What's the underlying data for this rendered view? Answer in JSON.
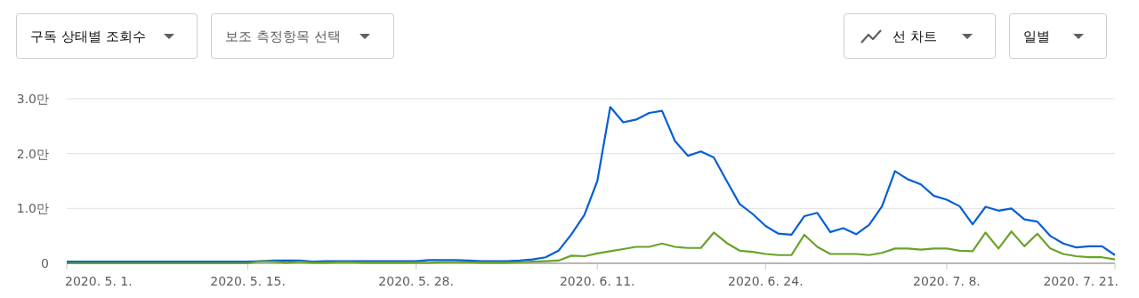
{
  "chart_data": {
    "type": "line",
    "annotations": [
      "구독 상태별 조회수",
      "보조 측정항목 선택",
      "선 차트",
      "일별"
    ],
    "x": [
      "2020-05-01",
      "2020-05-02",
      "2020-05-03",
      "2020-05-04",
      "2020-05-05",
      "2020-05-06",
      "2020-05-07",
      "2020-05-08",
      "2020-05-09",
      "2020-05-10",
      "2020-05-11",
      "2020-05-12",
      "2020-05-13",
      "2020-05-14",
      "2020-05-15",
      "2020-05-16",
      "2020-05-17",
      "2020-05-18",
      "2020-05-19",
      "2020-05-20",
      "2020-05-21",
      "2020-05-22",
      "2020-05-23",
      "2020-05-24",
      "2020-05-25",
      "2020-05-26",
      "2020-05-27",
      "2020-05-28",
      "2020-05-29",
      "2020-05-30",
      "2020-05-31",
      "2020-06-01",
      "2020-06-02",
      "2020-06-03",
      "2020-06-04",
      "2020-06-05",
      "2020-06-06",
      "2020-06-07",
      "2020-06-08",
      "2020-06-09",
      "2020-06-10",
      "2020-06-11",
      "2020-06-12",
      "2020-06-13",
      "2020-06-14",
      "2020-06-15",
      "2020-06-16",
      "2020-06-17",
      "2020-06-18",
      "2020-06-19",
      "2020-06-20",
      "2020-06-21",
      "2020-06-22",
      "2020-06-23",
      "2020-06-24",
      "2020-06-25",
      "2020-06-26",
      "2020-06-27",
      "2020-06-28",
      "2020-06-29",
      "2020-06-30",
      "2020-07-01",
      "2020-07-02",
      "2020-07-03",
      "2020-07-04",
      "2020-07-05",
      "2020-07-06",
      "2020-07-07",
      "2020-07-08",
      "2020-07-09",
      "2020-07-10",
      "2020-07-11",
      "2020-07-12",
      "2020-07-13",
      "2020-07-14",
      "2020-07-15",
      "2020-07-16",
      "2020-07-17",
      "2020-07-18",
      "2020-07-19",
      "2020-07-20",
      "2020-07-21"
    ],
    "series": [
      {
        "color": "#065fd4",
        "values": [
          0.03,
          0.03,
          0.03,
          0.03,
          0.03,
          0.03,
          0.03,
          0.03,
          0.03,
          0.03,
          0.03,
          0.03,
          0.03,
          0.03,
          0.03,
          0.04,
          0.05,
          0.05,
          0.05,
          0.03,
          0.04,
          0.04,
          0.04,
          0.04,
          0.04,
          0.04,
          0.04,
          0.04,
          0.06,
          0.06,
          0.06,
          0.05,
          0.04,
          0.04,
          0.04,
          0.05,
          0.07,
          0.11,
          0.23,
          0.53,
          0.88,
          1.5,
          2.85,
          2.57,
          2.62,
          2.74,
          2.78,
          2.23,
          1.96,
          2.04,
          1.93,
          1.5,
          1.08,
          0.9,
          0.68,
          0.54,
          0.52,
          0.86,
          0.92,
          0.57,
          0.64,
          0.53,
          0.7,
          1.04,
          1.68,
          1.53,
          1.44,
          1.23,
          1.16,
          1.04,
          0.71,
          1.03,
          0.96,
          1.0,
          0.8,
          0.76,
          0.5,
          0.36,
          0.29,
          0.31,
          0.31,
          0.15
        ]
      },
      {
        "color": "#6aa329",
        "values": [
          0,
          0,
          0,
          0,
          0,
          0,
          0,
          0,
          0,
          0,
          0,
          0,
          0,
          0,
          0,
          0.04,
          0.03,
          0.01,
          0.03,
          0.01,
          0.01,
          0.02,
          0.02,
          0.01,
          0.01,
          0.01,
          0.01,
          0.01,
          0.01,
          0.02,
          0.02,
          0.02,
          0.01,
          0.01,
          0.01,
          0.02,
          0.03,
          0.04,
          0.05,
          0.14,
          0.13,
          0.18,
          0.22,
          0.26,
          0.3,
          0.3,
          0.36,
          0.3,
          0.28,
          0.28,
          0.56,
          0.37,
          0.23,
          0.21,
          0.17,
          0.15,
          0.15,
          0.52,
          0.3,
          0.17,
          0.17,
          0.17,
          0.15,
          0.19,
          0.27,
          0.27,
          0.25,
          0.27,
          0.27,
          0.23,
          0.22,
          0.56,
          0.27,
          0.58,
          0.31,
          0.54,
          0.27,
          0.17,
          0.13,
          0.11,
          0.11,
          0.07
        ]
      }
    ],
    "xlim": [
      "2020-05-01",
      "2020-07-21"
    ],
    "xticks": [
      {
        "value": "2020-05-01",
        "label": "2020. 5. 1."
      },
      {
        "value": "2020-05-15",
        "label": "2020. 5. 15."
      },
      {
        "value": "2020-05-28",
        "label": "2020. 5. 28."
      },
      {
        "value": "2020-06-11",
        "label": "2020. 6. 11."
      },
      {
        "value": "2020-06-24",
        "label": "2020. 6. 24."
      },
      {
        "value": "2020-07-08",
        "label": "2020. 7. 8."
      },
      {
        "value": "2020-07-21",
        "label": "2020. 7. 21."
      }
    ],
    "ylim": [
      0,
      3
    ],
    "yticks": [
      0,
      {
        "value": 1,
        "label": "1.0만"
      },
      {
        "value": 2,
        "label": "2.0만"
      },
      {
        "value": 3,
        "label": "3.0만"
      }
    ],
    "grid": "y",
    "marker": "none",
    "line_style": "solid"
  }
}
